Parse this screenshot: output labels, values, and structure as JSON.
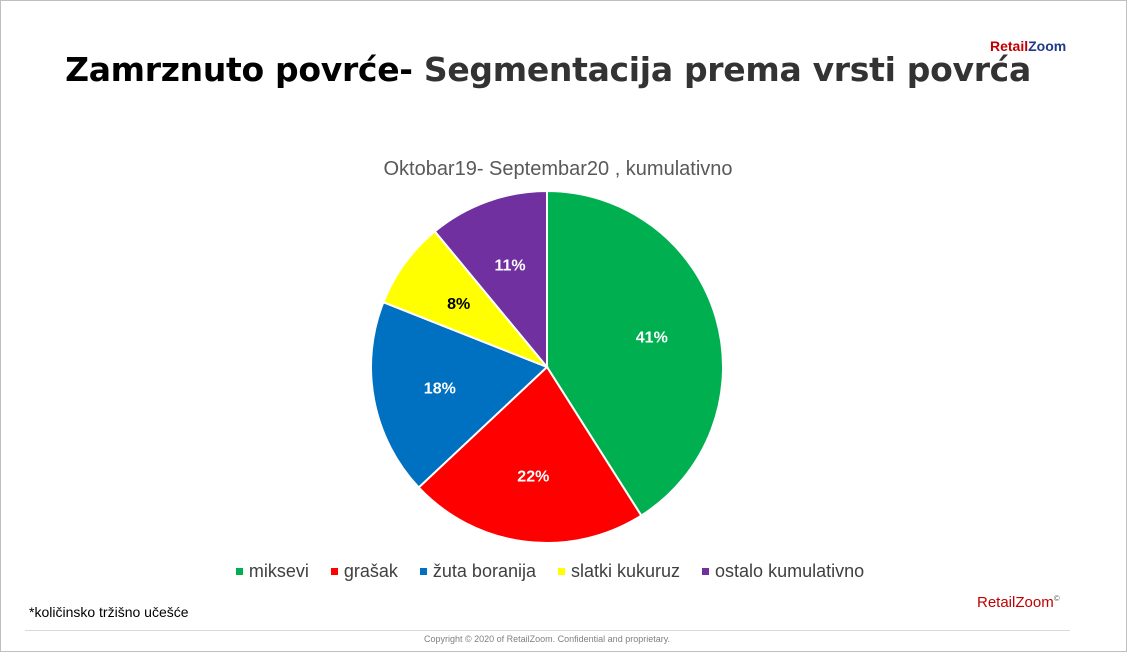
{
  "header": {
    "title_part1": "Zamrznuto povrće-",
    "title_part2": " Segmentacija prema vrsti povrća",
    "logo_retail": "Retail",
    "logo_zoom": "Zoom"
  },
  "chart_data": {
    "type": "pie",
    "title": "Oktobar19- Septembar20 , kumulativno",
    "slices": [
      {
        "name": "miksevi",
        "value": 41,
        "label": "41%",
        "color": "#00b050"
      },
      {
        "name": "grašak",
        "value": 22,
        "label": "22%",
        "color": "#ff0000"
      },
      {
        "name": "žuta boranija",
        "value": 18,
        "label": "18%",
        "color": "#0070c0"
      },
      {
        "name": "slatki kukuruz",
        "value": 8,
        "label": "8%",
        "color": "#ffff00"
      },
      {
        "name": "ostalo kumulativno",
        "value": 11,
        "label": "11%",
        "color": "#7030a0"
      }
    ],
    "label_colors": {
      "dark": "#000000",
      "light": "#ffffff"
    },
    "legend_placement": "bottom"
  },
  "footer": {
    "footnote": "*količinsko tržišno učešće",
    "logo": "RetailZoom",
    "logo_mark": "©",
    "copyright": "Copyright © 2020 of RetailZoom. Confidential and proprietary."
  }
}
